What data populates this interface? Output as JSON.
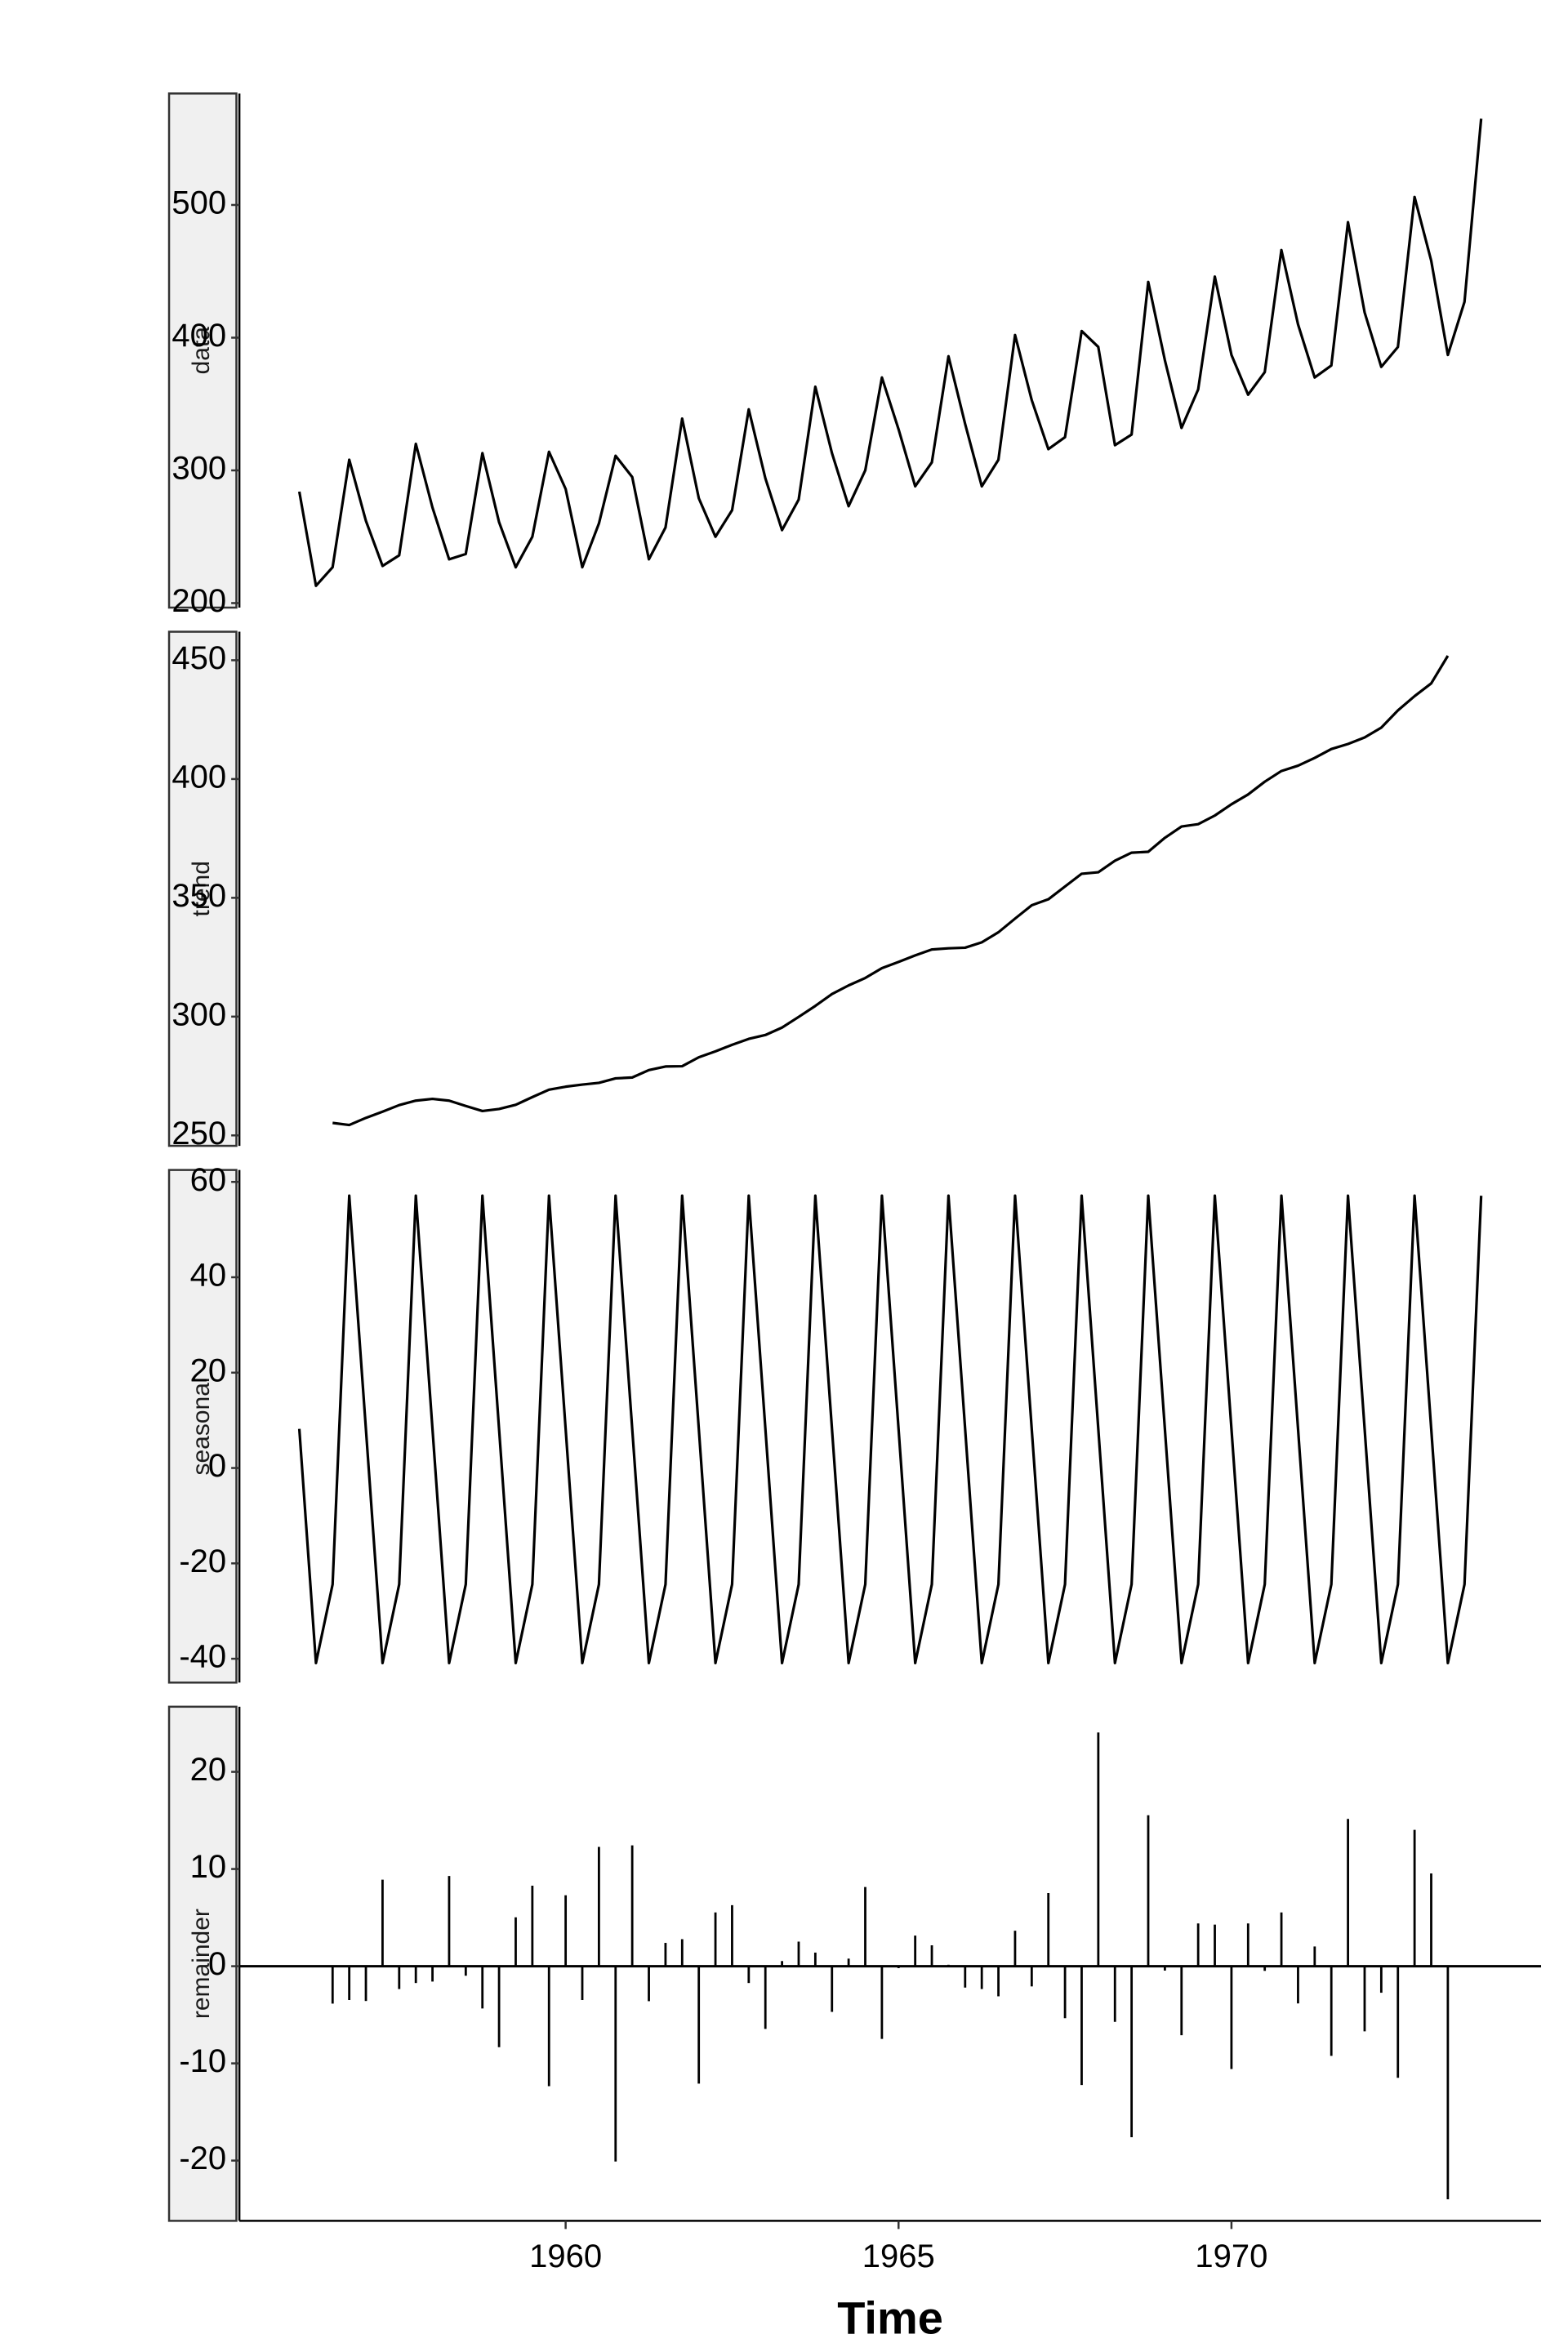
{
  "chart_data": [
    {
      "type": "line",
      "label": "data",
      "color": "#000000",
      "x": [
        1956,
        1956.25,
        1956.5,
        1956.75,
        1957,
        1957.25,
        1957.5,
        1957.75,
        1958,
        1958.25,
        1958.5,
        1958.75,
        1959,
        1959.25,
        1959.5,
        1959.75,
        1960,
        1960.25,
        1960.5,
        1960.75,
        1961,
        1961.25,
        1961.5,
        1961.75,
        1962,
        1962.25,
        1962.5,
        1962.75,
        1963,
        1963.25,
        1963.5,
        1963.75,
        1964,
        1964.25,
        1964.5,
        1964.75,
        1965,
        1965.25,
        1965.5,
        1965.75,
        1966,
        1966.25,
        1966.5,
        1966.75,
        1967,
        1967.25,
        1967.5,
        1967.75,
        1968,
        1968.25,
        1968.5,
        1968.75,
        1969,
        1969.25,
        1969.5,
        1969.75,
        1970,
        1970.25,
        1970.5,
        1970.75,
        1971,
        1971.25,
        1971.5,
        1971.75,
        1972,
        1972.25,
        1972.5,
        1972.75,
        1973,
        1973.25,
        1973.5,
        1973.75
      ],
      "values": [
        284,
        213,
        227,
        308,
        262,
        228,
        236,
        320,
        272,
        233,
        237,
        313,
        261,
        227,
        250,
        314,
        286,
        227,
        260,
        311,
        295,
        233,
        257,
        339,
        279,
        250,
        270,
        346,
        294,
        255,
        278,
        363,
        313,
        273,
        300,
        370,
        331,
        288,
        306,
        386,
        335,
        288,
        308,
        402,
        353,
        316,
        325,
        405,
        393,
        319,
        327,
        442,
        383,
        332,
        361,
        446,
        387,
        357,
        374,
        466,
        410,
        370,
        379,
        487,
        419,
        378,
        393,
        506,
        458,
        387,
        427,
        565
      ],
      "ylim": [
        196.6,
        584
      ],
      "yticks": [
        200,
        300,
        400,
        500
      ]
    },
    {
      "type": "line",
      "label": "trend",
      "color": "#000000",
      "x": [
        1956,
        1956.25,
        1956.5,
        1956.75,
        1957,
        1957.25,
        1957.5,
        1957.75,
        1958,
        1958.25,
        1958.5,
        1958.75,
        1959,
        1959.25,
        1959.5,
        1959.75,
        1960,
        1960.25,
        1960.5,
        1960.75,
        1961,
        1961.25,
        1961.5,
        1961.75,
        1962,
        1962.25,
        1962.5,
        1962.75,
        1963,
        1963.25,
        1963.5,
        1963.75,
        1964,
        1964.25,
        1964.5,
        1964.75,
        1965,
        1965.25,
        1965.5,
        1965.75,
        1966,
        1966.25,
        1966.5,
        1966.75,
        1967,
        1967.25,
        1967.5,
        1967.75,
        1968,
        1968.25,
        1968.5,
        1968.75,
        1969,
        1969.25,
        1969.5,
        1969.75,
        1970,
        1970.25,
        1970.5,
        1970.75,
        1971,
        1971.25,
        1971.5,
        1971.75,
        1972,
        1972.25,
        1972.5,
        1972.75,
        1973,
        1973.25,
        1973.5,
        1973.75
      ],
      "values": [
        null,
        null,
        255.25,
        254.375,
        257.375,
        260,
        262.75,
        264.625,
        265.375,
        264.625,
        262.375,
        260.25,
        261.125,
        262.875,
        266.125,
        269.25,
        270.5,
        271.375,
        272.125,
        274,
        274.375,
        277.5,
        279,
        279.125,
        282.875,
        285.375,
        288.125,
        290.625,
        292.25,
        295.375,
        299.875,
        304.5,
        309.5,
        313.125,
        316.25,
        320.375,
        323,
        325.75,
        328.25,
        328.75,
        329,
        331.25,
        335.5,
        341.25,
        346.875,
        349.375,
        354.75,
        360.125,
        360.75,
        365.625,
        369,
        369.375,
        375.25,
        380,
        381,
        384.625,
        389.375,
        393.5,
        398.875,
        403.375,
        405.625,
        408.875,
        412.625,
        414.75,
        417.5,
        421.625,
        428.875,
        434.875,
        440.25,
        451.875,
        null,
        null
      ],
      "ylim": [
        245.6,
        462
      ],
      "yticks": [
        250,
        300,
        350,
        400,
        450
      ]
    },
    {
      "type": "line",
      "label": "seasonal",
      "color": "#000000",
      "x": [
        1956,
        1956.25,
        1956.5,
        1956.75,
        1957,
        1957.25,
        1957.5,
        1957.75,
        1958,
        1958.25,
        1958.5,
        1958.75,
        1959,
        1959.25,
        1959.5,
        1959.75,
        1960,
        1960.25,
        1960.5,
        1960.75,
        1961,
        1961.25,
        1961.5,
        1961.75,
        1962,
        1962.25,
        1962.5,
        1962.75,
        1963,
        1963.25,
        1963.5,
        1963.75,
        1964,
        1964.25,
        1964.5,
        1964.75,
        1965,
        1965.25,
        1965.5,
        1965.75,
        1966,
        1966.25,
        1966.5,
        1966.75,
        1967,
        1967.25,
        1967.5,
        1967.75,
        1968,
        1968.25,
        1968.5,
        1968.75,
        1969,
        1969.25,
        1969.5,
        1969.75,
        1970,
        1970.25,
        1970.5,
        1970.75,
        1971,
        1971.25,
        1971.5,
        1971.75,
        1972,
        1972.25,
        1972.5,
        1972.75,
        1973,
        1973.25,
        1973.5,
        1973.75
      ],
      "values": [
        8.2,
        -40.9,
        -24.4,
        57.1,
        8.2,
        -40.9,
        -24.4,
        57.1,
        8.2,
        -40.9,
        -24.4,
        57.1,
        8.2,
        -40.9,
        -24.4,
        57.1,
        8.2,
        -40.9,
        -24.4,
        57.1,
        8.2,
        -40.9,
        -24.4,
        57.1,
        8.2,
        -40.9,
        -24.4,
        57.1,
        8.2,
        -40.9,
        -24.4,
        57.1,
        8.2,
        -40.9,
        -24.4,
        57.1,
        8.2,
        -40.9,
        -24.4,
        57.1,
        8.2,
        -40.9,
        -24.4,
        57.1,
        8.2,
        -40.9,
        -24.4,
        57.1,
        8.2,
        -40.9,
        -24.4,
        57.1,
        8.2,
        -40.9,
        -24.4,
        57.1,
        8.2,
        -40.9,
        -24.4,
        57.1,
        8.2,
        -40.9,
        -24.4,
        57.1,
        8.2,
        -40.9,
        -24.4,
        57.1,
        8.2,
        -40.9,
        -24.4,
        57.1
      ],
      "ylim": [
        -45,
        62.5
      ],
      "yticks": [
        -40,
        -20,
        0,
        20,
        40,
        60
      ]
    },
    {
      "type": "bar",
      "label": "remainder",
      "color": "#000000",
      "xlabel": "Time",
      "x": [
        1956,
        1956.25,
        1956.5,
        1956.75,
        1957,
        1957.25,
        1957.5,
        1957.75,
        1958,
        1958.25,
        1958.5,
        1958.75,
        1959,
        1959.25,
        1959.5,
        1959.75,
        1960,
        1960.25,
        1960.5,
        1960.75,
        1961,
        1961.25,
        1961.5,
        1961.75,
        1962,
        1962.25,
        1962.5,
        1962.75,
        1963,
        1963.25,
        1963.5,
        1963.75,
        1964,
        1964.25,
        1964.5,
        1964.75,
        1965,
        1965.25,
        1965.5,
        1965.75,
        1966,
        1966.25,
        1966.5,
        1966.75,
        1967,
        1967.25,
        1967.5,
        1967.75,
        1968,
        1968.25,
        1968.5,
        1968.75,
        1969,
        1969.25,
        1969.5,
        1969.75,
        1970,
        1970.25,
        1970.5,
        1970.75,
        1971,
        1971.25,
        1971.5,
        1971.75,
        1972,
        1972.25,
        1972.5,
        1972.75,
        1973,
        1973.25,
        1973.5,
        1973.75
      ],
      "values": [
        null,
        null,
        -3.85,
        -3.48,
        -3.58,
        8.9,
        -2.35,
        -1.73,
        -1.58,
        9.28,
        -0.98,
        -4.35,
        -8.33,
        5.03,
        8.28,
        -12.35,
        7.3,
        -3.48,
        12.28,
        -20.1,
        12.43,
        -3.6,
        2.4,
        2.78,
        -12.08,
        5.53,
        6.28,
        -1.73,
        -6.45,
        0.53,
        2.53,
        1.4,
        -4.7,
        0.78,
        8.15,
        -7.48,
        -0.2,
        3.15,
        2.15,
        0.15,
        -2.2,
        -2.35,
        -3.1,
        3.65,
        -2.08,
        7.53,
        -5.35,
        -12.23,
        24.05,
        -5.73,
        -17.6,
        15.53,
        -0.45,
        -7.1,
        4.4,
        4.28,
        -10.58,
        4.4,
        -0.48,
        5.53,
        -3.83,
        2.03,
        -9.23,
        15.15,
        -6.7,
        -2.73,
        -11.48,
        14.03,
        9.55,
        -23.98,
        null,
        null
      ],
      "ylim": [
        -26.2,
        26.7
      ],
      "yticks": [
        -20,
        -10,
        0,
        10,
        20
      ],
      "xlim": [
        1955.1,
        1974.65
      ],
      "xticks": [
        1960,
        1965,
        1970
      ]
    }
  ]
}
